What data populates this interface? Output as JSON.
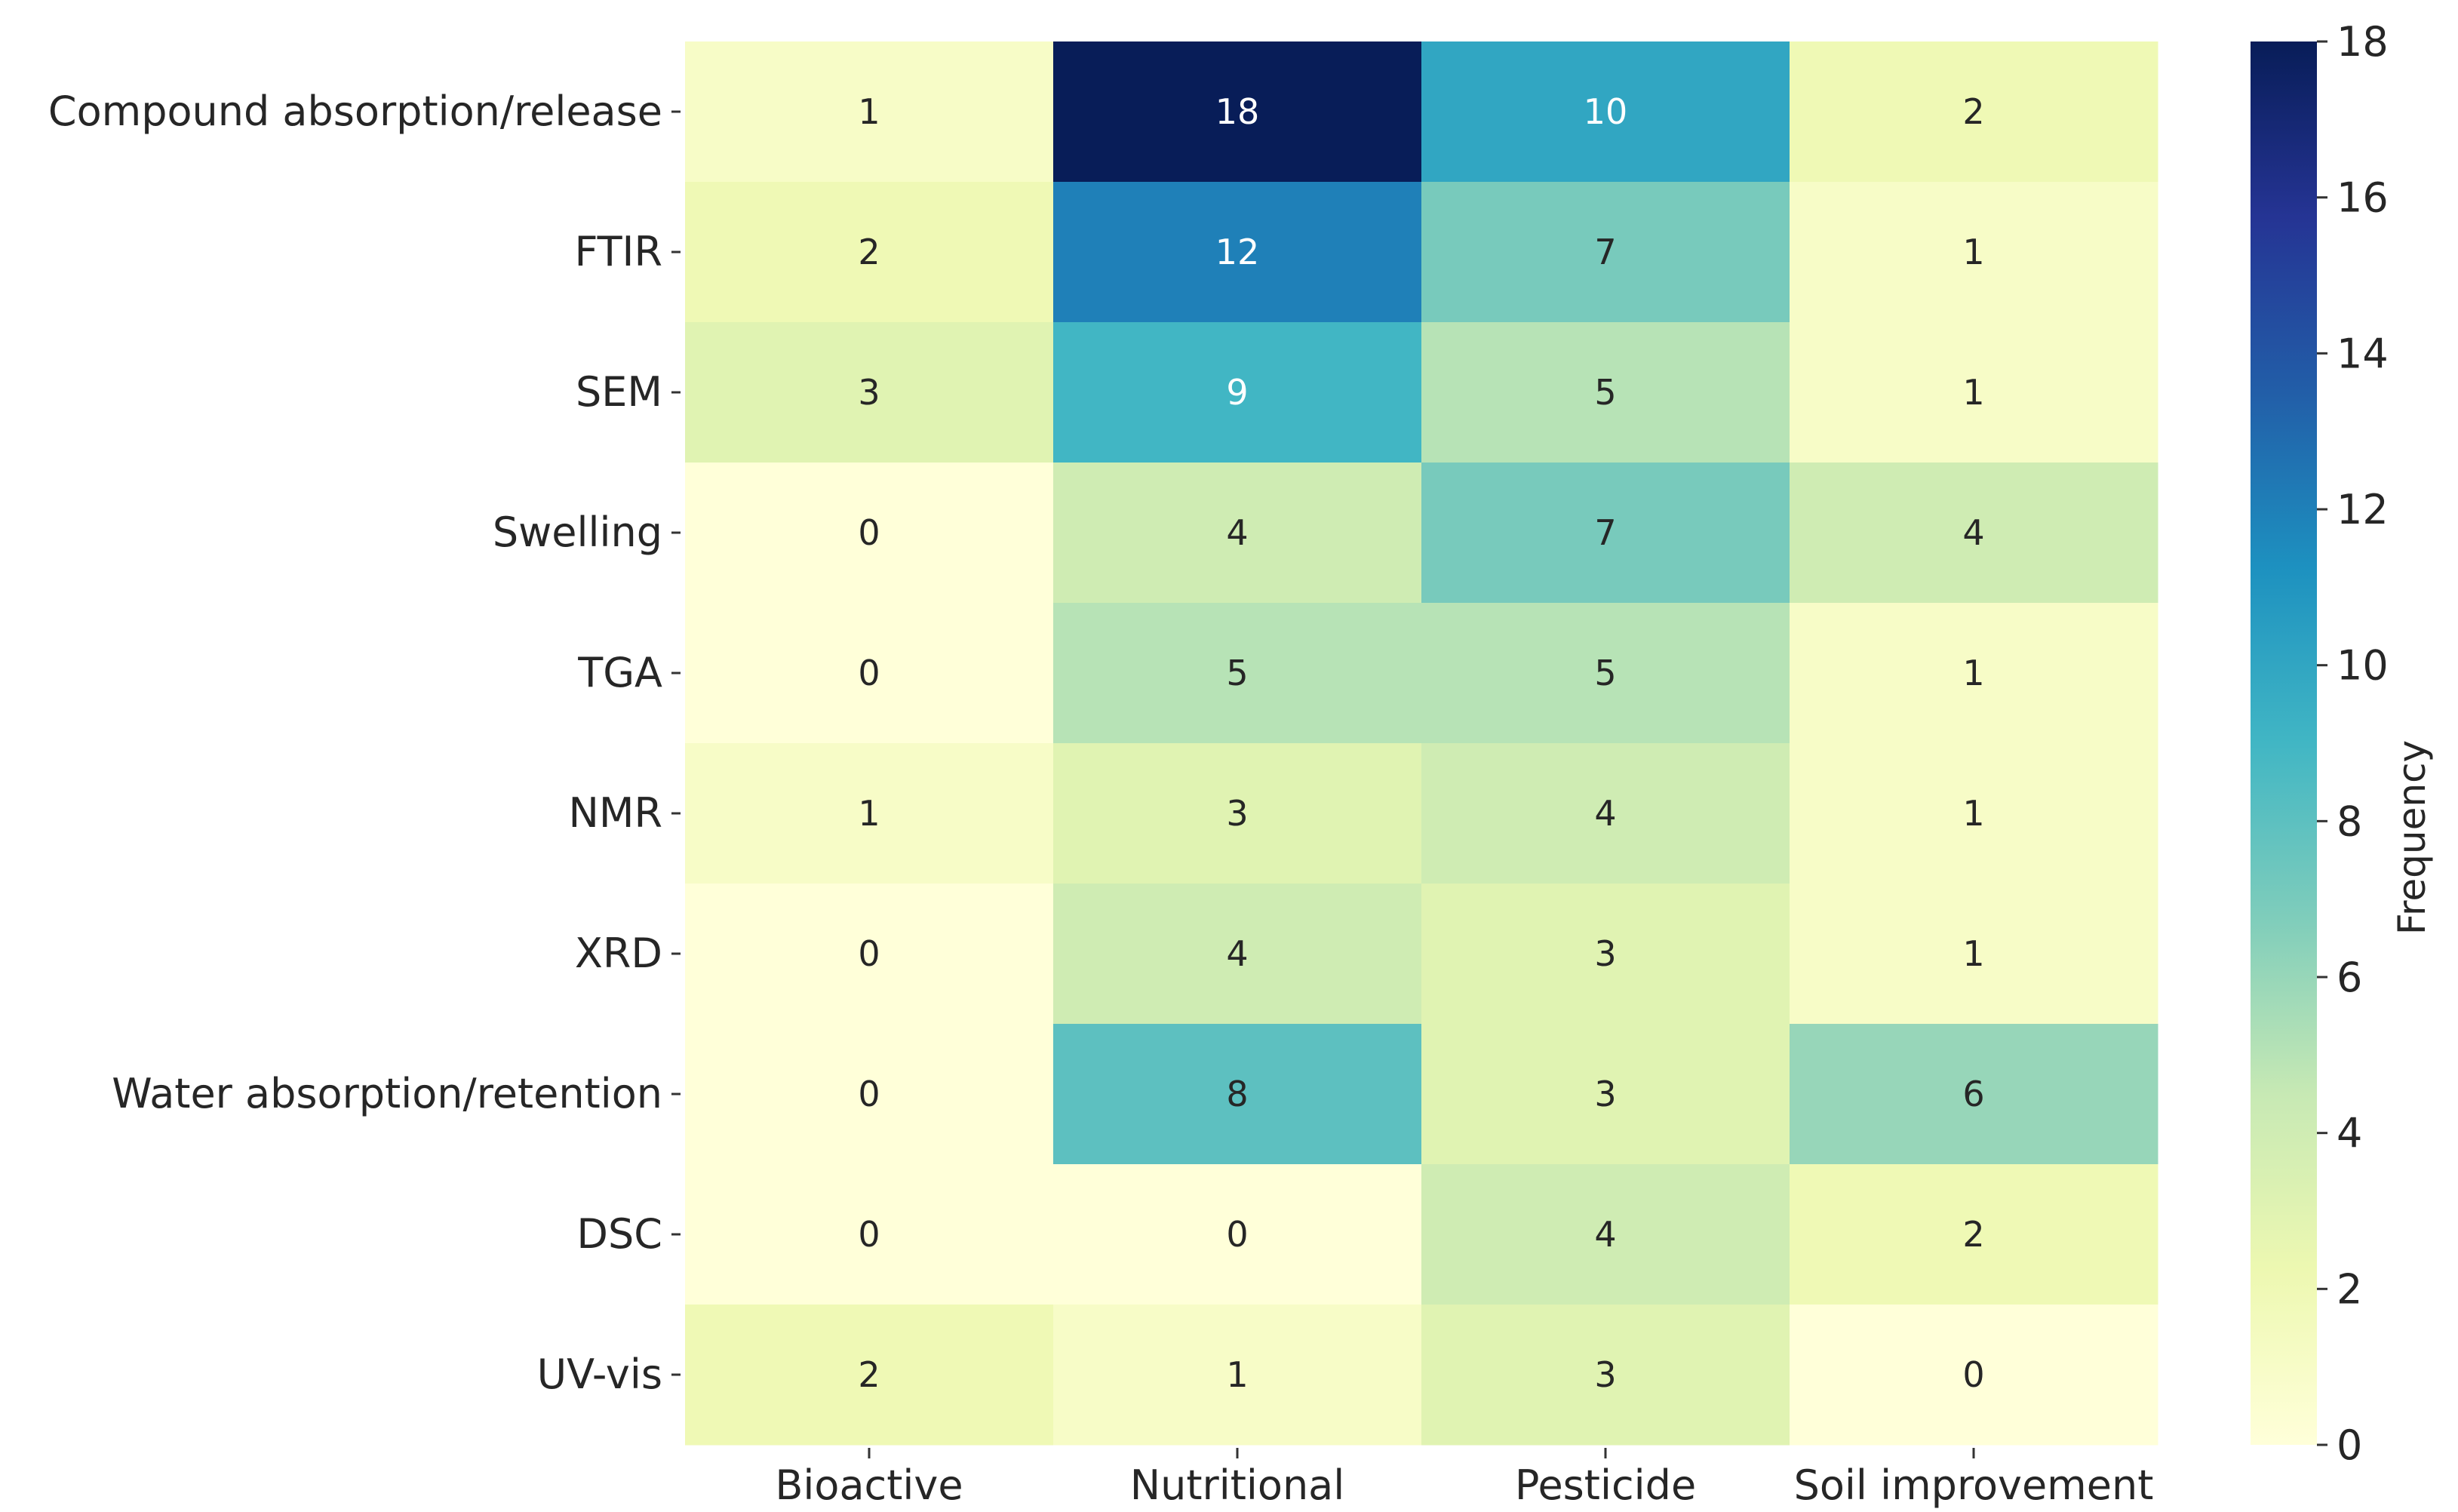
{
  "chart_data": {
    "type": "heatmap",
    "title": "",
    "xlabel": "",
    "ylabel": "",
    "rows": [
      "Compound absorption/release",
      "FTIR",
      "SEM",
      "Swelling",
      "TGA",
      "NMR",
      "XRD",
      "Water absorption/retention",
      "DSC",
      "UV-vis"
    ],
    "columns": [
      "Bioactive",
      "Nutritional",
      "Pesticide",
      "Soil improvement"
    ],
    "values": [
      [
        1,
        18,
        10,
        2
      ],
      [
        2,
        12,
        7,
        1
      ],
      [
        3,
        9,
        5,
        1
      ],
      [
        0,
        4,
        7,
        4
      ],
      [
        0,
        5,
        5,
        1
      ],
      [
        1,
        3,
        4,
        1
      ],
      [
        0,
        4,
        3,
        1
      ],
      [
        0,
        8,
        3,
        6
      ],
      [
        0,
        0,
        4,
        2
      ],
      [
        2,
        1,
        3,
        0
      ]
    ],
    "colorbar": {
      "label": "Frequency",
      "min": 0,
      "max": 18,
      "ticks": [
        0,
        2,
        4,
        6,
        8,
        10,
        12,
        14,
        16,
        18
      ],
      "colormap": "YlGnBu",
      "stops": [
        "#ffffd9",
        "#edf8b1",
        "#c7e9b4",
        "#7fcdbb",
        "#41b6c4",
        "#1d91c0",
        "#225ea8",
        "#253494",
        "#081d58"
      ]
    },
    "annotation_light_color": "#ffffff",
    "annotation_dark_color": "#262626"
  }
}
